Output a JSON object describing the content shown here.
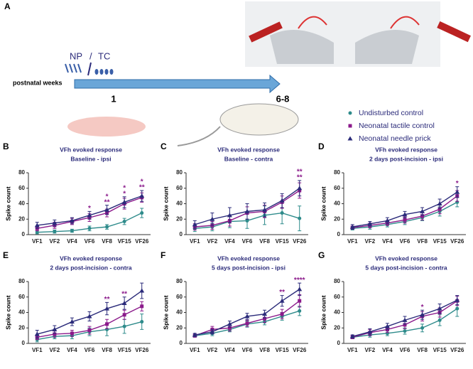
{
  "panel_a": {
    "letter": "A",
    "np": "NP",
    "slash": "/",
    "tc": "TC",
    "timeline_label": "postnatal weeks",
    "week_start": "1",
    "week_end": "6-8"
  },
  "chart_data": [
    {
      "type": "line",
      "letter": "B",
      "title": "VFh evoked response",
      "subtitle": "Baseline - ipsi",
      "ylabel": "Spike count",
      "categories": [
        "VF1",
        "VF2",
        "VF4",
        "VF6",
        "VF8",
        "VF15",
        "VF26"
      ],
      "ylim": [
        0,
        80
      ],
      "yticks": [
        0,
        20,
        40,
        60,
        80
      ],
      "series": [
        {
          "name": "Undisturbed control",
          "color": "#2e8b8b",
          "marker": "circle",
          "values": [
            3,
            4,
            5,
            8,
            10,
            17,
            28
          ],
          "errors": [
            2,
            2,
            2,
            3,
            3,
            4,
            6
          ]
        },
        {
          "name": "Neonatal tactile control",
          "color": "#8b1a8b",
          "marker": "square",
          "values": [
            8,
            12,
            17,
            22,
            28,
            40,
            48
          ],
          "errors": [
            3,
            4,
            4,
            5,
            5,
            7,
            6
          ]
        },
        {
          "name": "Neonatal needle prick",
          "color": "#2b2b7a",
          "marker": "triangle",
          "values": [
            12,
            15,
            18,
            25,
            32,
            42,
            50
          ],
          "errors": [
            4,
            4,
            4,
            5,
            6,
            7,
            7
          ]
        }
      ],
      "annotations": [
        {
          "x": "VF6",
          "lines": [
            "*"
          ]
        },
        {
          "x": "VF8",
          "lines": [
            "*",
            "**"
          ]
        },
        {
          "x": "VF15",
          "lines": [
            "*",
            "*"
          ]
        },
        {
          "x": "VF26",
          "lines": [
            "*",
            "**"
          ]
        }
      ]
    },
    {
      "type": "line",
      "letter": "C",
      "title": "VFh evoked response",
      "subtitle": "Baseline - contra",
      "ylabel": "Spike count",
      "categories": [
        "VF1",
        "VF2",
        "VF4",
        "VF6",
        "VF8",
        "VF15",
        "VF26"
      ],
      "ylim": [
        0,
        80
      ],
      "yticks": [
        0,
        20,
        40,
        60,
        80
      ],
      "series": [
        {
          "color": "#2e8b8b",
          "marker": "circle",
          "values": [
            8,
            10,
            17,
            18,
            25,
            28,
            21
          ],
          "errors": [
            4,
            5,
            8,
            10,
            12,
            14,
            16
          ]
        },
        {
          "color": "#8b1a8b",
          "marker": "square",
          "values": [
            10,
            12,
            18,
            28,
            30,
            42,
            57
          ],
          "errors": [
            4,
            5,
            7,
            8,
            8,
            8,
            10
          ]
        },
        {
          "color": "#2b2b7a",
          "marker": "triangle",
          "values": [
            13,
            20,
            25,
            30,
            32,
            44,
            60
          ],
          "errors": [
            5,
            8,
            10,
            10,
            9,
            9,
            10
          ]
        }
      ],
      "annotations": [
        {
          "x": "VF26",
          "lines": [
            "**",
            "**"
          ]
        }
      ]
    },
    {
      "type": "line",
      "letter": "D",
      "title": "VFh evoked response",
      "subtitle": "2 days post-incision - ipsi",
      "ylabel": "Spike count",
      "categories": [
        "VF1",
        "VF2",
        "VF4",
        "VF6",
        "VF8",
        "VF15",
        "VF26"
      ],
      "ylim": [
        0,
        80
      ],
      "yticks": [
        0,
        20,
        40,
        60,
        80
      ],
      "series": [
        {
          "color": "#2e8b8b",
          "marker": "circle",
          "values": [
            8,
            10,
            13,
            17,
            22,
            30,
            42
          ],
          "errors": [
            2,
            3,
            3,
            4,
            4,
            6,
            6
          ]
        },
        {
          "color": "#8b1a8b",
          "marker": "square",
          "values": [
            9,
            12,
            15,
            19,
            24,
            33,
            50
          ],
          "errors": [
            2,
            3,
            3,
            4,
            5,
            6,
            7
          ]
        },
        {
          "color": "#2b2b7a",
          "marker": "triangle",
          "values": [
            10,
            14,
            18,
            26,
            30,
            40,
            55
          ],
          "errors": [
            3,
            3,
            4,
            4,
            5,
            6,
            7
          ]
        }
      ],
      "annotations": [
        {
          "x": "VF26",
          "lines": [
            "*"
          ]
        }
      ]
    },
    {
      "type": "line",
      "letter": "E",
      "title": "VFh evoked response",
      "subtitle": "2 days post-incision - contra",
      "ylabel": "Spike count",
      "categories": [
        "VF1",
        "VF2",
        "VF4",
        "VF6",
        "VF8",
        "VF15",
        "VF26"
      ],
      "ylim": [
        0,
        80
      ],
      "yticks": [
        0,
        20,
        40,
        60,
        80
      ],
      "series": [
        {
          "color": "#2e8b8b",
          "marker": "circle",
          "values": [
            5,
            9,
            10,
            15,
            18,
            22,
            28
          ],
          "errors": [
            3,
            3,
            4,
            5,
            8,
            9,
            10
          ]
        },
        {
          "color": "#8b1a8b",
          "marker": "square",
          "values": [
            8,
            12,
            13,
            17,
            25,
            37,
            48
          ],
          "errors": [
            3,
            4,
            4,
            5,
            6,
            6,
            6
          ]
        },
        {
          "color": "#2b2b7a",
          "marker": "triangle",
          "values": [
            12,
            18,
            28,
            35,
            45,
            52,
            68
          ],
          "errors": [
            5,
            5,
            5,
            6,
            8,
            8,
            10
          ]
        }
      ],
      "annotations": [
        {
          "x": "VF8",
          "lines": [
            "**"
          ]
        },
        {
          "x": "VF15",
          "lines": [
            "**"
          ]
        }
      ]
    },
    {
      "type": "line",
      "letter": "F",
      "title": "VFh evoked response",
      "subtitle": "5 days post-incision - ipsi",
      "ylabel": "Spike count",
      "categories": [
        "VF1",
        "VF2",
        "VF4",
        "VF6",
        "VF8",
        "VF15",
        "VF26"
      ],
      "ylim": [
        0,
        80
      ],
      "yticks": [
        0,
        20,
        40,
        60,
        80
      ],
      "series": [
        {
          "color": "#2e8b8b",
          "marker": "circle",
          "values": [
            10,
            13,
            18,
            25,
            28,
            35,
            42
          ],
          "errors": [
            2,
            3,
            3,
            4,
            4,
            5,
            6
          ]
        },
        {
          "color": "#8b1a8b",
          "marker": "square",
          "values": [
            10,
            18,
            20,
            26,
            32,
            38,
            55
          ],
          "errors": [
            2,
            4,
            4,
            4,
            5,
            6,
            8
          ]
        },
        {
          "color": "#2b2b7a",
          "marker": "triangle",
          "values": [
            11,
            15,
            25,
            35,
            38,
            55,
            70
          ],
          "errors": [
            2,
            3,
            4,
            4,
            5,
            7,
            8
          ]
        }
      ],
      "annotations": [
        {
          "x": "VF15",
          "lines": [
            "**"
          ]
        },
        {
          "x": "VF26",
          "lines": [
            "****"
          ]
        }
      ]
    },
    {
      "type": "line",
      "letter": "G",
      "title": "VFh evoked response",
      "subtitle": "5 days post-incision - contra",
      "ylabel": "Spike count",
      "categories": [
        "VF1",
        "VF2",
        "VF4",
        "VF6",
        "VF8",
        "VF15",
        "VF26"
      ],
      "ylim": [
        0,
        80
      ],
      "yticks": [
        0,
        20,
        40,
        60,
        80
      ],
      "series": [
        {
          "color": "#2e8b8b",
          "marker": "circle",
          "values": [
            8,
            11,
            13,
            16,
            20,
            30,
            45
          ],
          "errors": [
            2,
            3,
            3,
            4,
            5,
            7,
            10
          ]
        },
        {
          "color": "#8b1a8b",
          "marker": "square",
          "values": [
            8,
            14,
            18,
            24,
            35,
            40,
            55
          ],
          "errors": [
            2,
            4,
            4,
            5,
            6,
            6,
            6
          ]
        },
        {
          "color": "#2b2b7a",
          "marker": "triangle",
          "values": [
            9,
            15,
            22,
            30,
            37,
            45,
            56
          ],
          "errors": [
            2,
            4,
            4,
            5,
            6,
            6,
            6
          ]
        }
      ],
      "annotations": [
        {
          "x": "VF8",
          "lines": [
            "*"
          ]
        }
      ]
    }
  ]
}
